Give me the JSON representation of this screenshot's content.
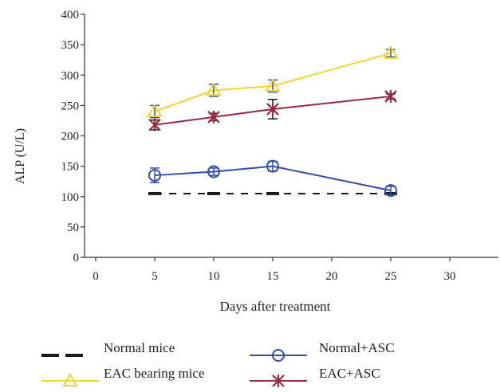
{
  "chart_data": {
    "type": "line",
    "xlabel": "Days after treatment",
    "ylabel": "ALP (U/L)",
    "xlim": [
      0,
      33
    ],
    "ylim": [
      0,
      400
    ],
    "xticks": [
      0,
      5,
      10,
      15,
      20,
      25,
      30
    ],
    "yticks": [
      0,
      50,
      100,
      150,
      200,
      250,
      300,
      350,
      400
    ],
    "grid": false,
    "legend_position": "bottom",
    "series": [
      {
        "name": "Normal mice",
        "color": "#1a1a1a",
        "line_style": "dashed",
        "marker": "bar",
        "x": [
          5,
          10,
          15,
          25
        ],
        "y": [
          105,
          105,
          105,
          105
        ],
        "err": [
          0,
          0,
          0,
          0
        ]
      },
      {
        "name": "EAC bearing mice",
        "color": "#f2d531",
        "line_style": "solid",
        "marker": "triangle",
        "x": [
          5,
          10,
          15,
          25
        ],
        "y": [
          240,
          275,
          282,
          336
        ],
        "err": [
          10,
          10,
          10,
          6
        ]
      },
      {
        "name": "Normal+ASC",
        "color": "#2e4fa8",
        "line_style": "solid",
        "marker": "circle",
        "x": [
          5,
          10,
          15,
          25
        ],
        "y": [
          135,
          141,
          150,
          110
        ],
        "err": [
          12,
          6,
          8,
          7
        ]
      },
      {
        "name": "EAC+ASC",
        "color": "#9b2740",
        "line_style": "solid",
        "marker": "star",
        "x": [
          5,
          10,
          15,
          25
        ],
        "y": [
          218,
          231,
          244,
          265
        ],
        "err": [
          8,
          6,
          16,
          4
        ]
      }
    ]
  }
}
